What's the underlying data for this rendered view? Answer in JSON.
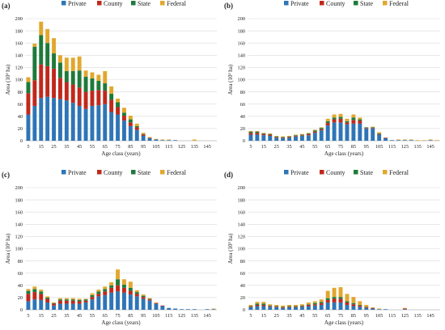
{
  "legend": [
    {
      "label": "Private",
      "color": "#2E75B6"
    },
    {
      "label": "County",
      "color": "#C0281C"
    },
    {
      "label": "State",
      "color": "#1E7A3A"
    },
    {
      "label": "Federal",
      "color": "#E2A72E"
    }
  ],
  "chart_data": [
    {
      "panel": "(a)",
      "type": "bar",
      "stacked": true,
      "xlabel": "Age class (years)",
      "ylabel": "Area (10³ ha)",
      "ylim": [
        0,
        200
      ],
      "yticks": [
        0,
        20,
        40,
        60,
        80,
        100,
        120,
        140,
        160,
        180,
        200
      ],
      "xtick_labels": [
        "5",
        "15",
        "25",
        "35",
        "45",
        "55",
        "65",
        "75",
        "85",
        "95",
        "105",
        "115",
        "125",
        "135",
        "145"
      ],
      "categories": [
        5,
        10,
        15,
        20,
        25,
        30,
        35,
        40,
        45,
        50,
        55,
        60,
        65,
        70,
        75,
        80,
        85,
        90,
        95,
        100,
        105,
        110,
        115,
        120,
        125,
        130,
        135,
        140,
        145,
        150
      ],
      "series": [
        {
          "name": "Private",
          "values": [
            43,
            57,
            70,
            72,
            70,
            68,
            66,
            62,
            57,
            52,
            57,
            58,
            60,
            47,
            43,
            33,
            24,
            18,
            8,
            4,
            2,
            1,
            1,
            1,
            0,
            0,
            0,
            0,
            0,
            0
          ]
        },
        {
          "name": "County",
          "values": [
            35,
            42,
            55,
            50,
            48,
            35,
            30,
            30,
            30,
            28,
            25,
            25,
            22,
            20,
            12,
            8,
            6,
            4,
            2,
            1,
            0,
            0,
            0,
            0,
            0,
            0,
            0,
            0,
            0,
            0
          ]
        },
        {
          "name": "State",
          "values": [
            18,
            55,
            48,
            38,
            25,
            25,
            18,
            22,
            28,
            25,
            20,
            15,
            12,
            10,
            8,
            5,
            5,
            2,
            1,
            0,
            0,
            0,
            0,
            0,
            0,
            0,
            0,
            0,
            0,
            0
          ]
        },
        {
          "name": "Federal",
          "values": [
            8,
            5,
            22,
            23,
            25,
            12,
            22,
            22,
            23,
            10,
            10,
            10,
            20,
            12,
            6,
            8,
            6,
            4,
            2,
            1,
            1,
            1,
            1,
            0,
            0,
            0,
            2,
            0,
            0,
            0
          ]
        }
      ]
    },
    {
      "panel": "(b)",
      "type": "bar",
      "stacked": true,
      "xlabel": "Age class (years)",
      "ylabel": "Area (10³ ha)",
      "ylim": [
        0,
        200
      ],
      "yticks": [
        0,
        20,
        40,
        60,
        80,
        100,
        120,
        140,
        160,
        180,
        200
      ],
      "xtick_labels": [
        "5",
        "15",
        "25",
        "35",
        "45",
        "55",
        "65",
        "75",
        "85",
        "95",
        "105",
        "115",
        "125",
        "135",
        "145"
      ],
      "categories": [
        5,
        10,
        15,
        20,
        25,
        30,
        35,
        40,
        45,
        50,
        55,
        60,
        65,
        70,
        75,
        80,
        85,
        90,
        95,
        100,
        105,
        110,
        115,
        120,
        125,
        130,
        135,
        140,
        145,
        150
      ],
      "series": [
        {
          "name": "Private",
          "values": [
            10,
            10,
            9,
            8,
            5,
            4,
            5,
            7,
            8,
            9,
            13,
            17,
            25,
            30,
            30,
            27,
            28,
            28,
            20,
            20,
            10,
            4,
            1,
            1,
            1,
            1,
            0,
            0,
            1,
            0
          ]
        },
        {
          "name": "County",
          "values": [
            3,
            3,
            2,
            2,
            1,
            1,
            1,
            1,
            1,
            2,
            2,
            2,
            4,
            5,
            6,
            3,
            6,
            5,
            1,
            1,
            1,
            1,
            0,
            0,
            0,
            0,
            0,
            0,
            0,
            0
          ]
        },
        {
          "name": "State",
          "values": [
            2,
            2,
            1,
            1,
            1,
            1,
            1,
            1,
            1,
            1,
            2,
            2,
            3,
            3,
            3,
            2,
            4,
            2,
            1,
            1,
            1,
            0,
            0,
            0,
            0,
            0,
            0,
            0,
            0,
            0
          ]
        },
        {
          "name": "Federal",
          "values": [
            1,
            1,
            1,
            1,
            1,
            1,
            1,
            1,
            1,
            1,
            1,
            1,
            4,
            5,
            5,
            4,
            5,
            3,
            0,
            1,
            2,
            0,
            0,
            1,
            1,
            1,
            1,
            1,
            1,
            1
          ]
        }
      ]
    },
    {
      "panel": "(c)",
      "type": "bar",
      "stacked": true,
      "xlabel": "Age class (years)",
      "ylabel": "Area (10³ ha)",
      "ylim": [
        0,
        200
      ],
      "yticks": [
        0,
        20,
        40,
        60,
        80,
        100,
        120,
        140,
        160,
        180,
        200
      ],
      "xtick_labels": [
        "5",
        "15",
        "25",
        "35",
        "45",
        "55",
        "65",
        "75",
        "85",
        "95",
        "105",
        "115",
        "125",
        "135",
        "145"
      ],
      "categories": [
        5,
        10,
        15,
        20,
        25,
        30,
        35,
        40,
        45,
        50,
        55,
        60,
        65,
        70,
        75,
        80,
        85,
        90,
        95,
        100,
        105,
        110,
        115,
        120,
        125,
        130,
        135,
        140,
        145,
        150
      ],
      "series": [
        {
          "name": "Private",
          "values": [
            14,
            17,
            16,
            12,
            7,
            10,
            10,
            10,
            10,
            12,
            17,
            22,
            24,
            28,
            30,
            28,
            25,
            22,
            18,
            15,
            10,
            6,
            3,
            2,
            1,
            1,
            1,
            0,
            1,
            1
          ]
        },
        {
          "name": "County",
          "values": [
            12,
            12,
            10,
            6,
            3,
            5,
            5,
            5,
            4,
            3,
            4,
            4,
            6,
            8,
            10,
            8,
            6,
            4,
            3,
            2,
            1,
            1,
            0,
            0,
            0,
            0,
            0,
            0,
            0,
            0
          ]
        },
        {
          "name": "State",
          "values": [
            5,
            5,
            4,
            2,
            1,
            2,
            2,
            2,
            2,
            2,
            3,
            4,
            4,
            4,
            10,
            5,
            5,
            3,
            2,
            1,
            0,
            0,
            0,
            0,
            0,
            0,
            0,
            0,
            0,
            0
          ]
        },
        {
          "name": "Federal",
          "values": [
            3,
            4,
            3,
            2,
            1,
            2,
            2,
            2,
            2,
            1,
            3,
            3,
            4,
            5,
            16,
            9,
            10,
            3,
            2,
            1,
            1,
            0,
            0,
            0,
            0,
            0,
            0,
            0,
            0,
            1
          ]
        }
      ]
    },
    {
      "panel": "(d)",
      "type": "bar",
      "stacked": true,
      "xlabel": "Age class (years)",
      "ylabel": "Area (10³ ha)",
      "ylim": [
        0,
        200
      ],
      "yticks": [
        0,
        20,
        40,
        60,
        80,
        100,
        120,
        140,
        160,
        180,
        200
      ],
      "xtick_labels": [
        "5",
        "15",
        "25",
        "35",
        "45",
        "55",
        "65",
        "75",
        "85",
        "95",
        "105",
        "115",
        "125",
        "135",
        "145"
      ],
      "categories": [
        5,
        10,
        15,
        20,
        25,
        30,
        35,
        40,
        45,
        50,
        55,
        60,
        65,
        70,
        75,
        80,
        85,
        90,
        95,
        100,
        105,
        110,
        115,
        120,
        125,
        130,
        135,
        140,
        145,
        150
      ],
      "series": [
        {
          "name": "Private",
          "values": [
            4,
            6,
            6,
            5,
            4,
            3,
            4,
            4,
            5,
            6,
            7,
            8,
            12,
            12,
            12,
            8,
            6,
            5,
            3,
            2,
            1,
            1,
            0,
            0,
            1,
            0,
            0,
            0,
            0,
            0
          ]
        },
        {
          "name": "County",
          "values": [
            1,
            2,
            2,
            1,
            1,
            1,
            1,
            1,
            1,
            2,
            2,
            3,
            4,
            6,
            6,
            4,
            3,
            2,
            1,
            1,
            0,
            0,
            0,
            0,
            1,
            0,
            0,
            0,
            0,
            0
          ]
        },
        {
          "name": "State",
          "values": [
            1,
            2,
            2,
            1,
            1,
            1,
            1,
            1,
            1,
            1,
            2,
            2,
            3,
            3,
            3,
            2,
            2,
            1,
            1,
            0,
            0,
            0,
            0,
            0,
            0,
            0,
            0,
            0,
            0,
            0
          ]
        },
        {
          "name": "Federal",
          "values": [
            2,
            3,
            3,
            2,
            2,
            2,
            2,
            2,
            2,
            3,
            3,
            4,
            12,
            15,
            16,
            12,
            10,
            6,
            3,
            1,
            1,
            0,
            0,
            0,
            1,
            0,
            0,
            0,
            0,
            0
          ]
        }
      ]
    }
  ]
}
